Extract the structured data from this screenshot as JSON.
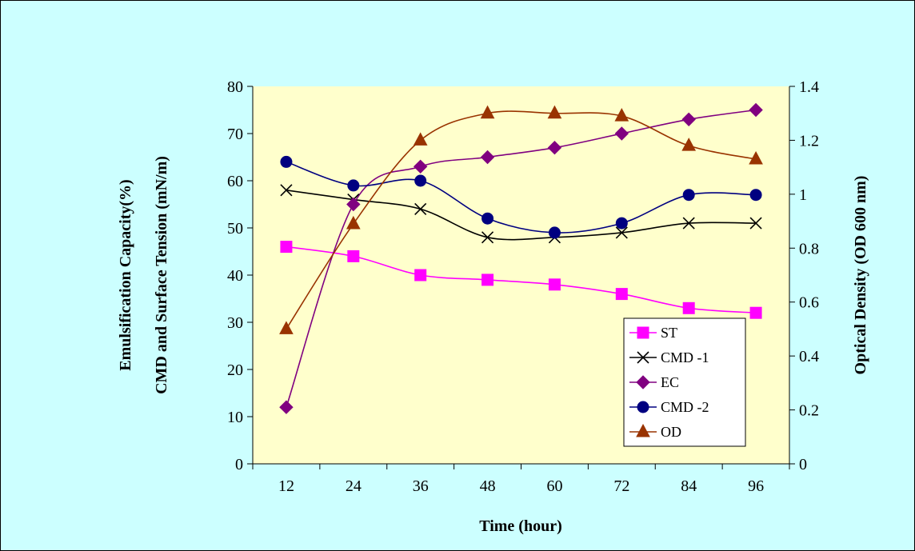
{
  "chart_data": {
    "type": "line",
    "title": "",
    "x": [
      12,
      24,
      36,
      48,
      60,
      72,
      84,
      96
    ],
    "xlabel": "Time (hour)",
    "ylabel_left_line1": "Emulsification Capacity(%)",
    "ylabel_left_line2": "CMD and Surface Tension (mN/m)",
    "ylabel_right": "Optical Density (OD 600 nm)",
    "ylim_left": [
      0,
      80
    ],
    "ylim_right": [
      0,
      1.4
    ],
    "yticks_left": [
      "0",
      "10",
      "20",
      "30",
      "40",
      "50",
      "60",
      "70",
      "80"
    ],
    "yticks_right": [
      "0",
      "0.2",
      "0.4",
      "0.6",
      "0.8",
      "1",
      "1.2",
      "1.4"
    ],
    "xticks": [
      "12",
      "24",
      "36",
      "48",
      "60",
      "72",
      "84",
      "96"
    ],
    "plot_background": "#ffffcc",
    "page_background": "#ccffff",
    "legend_position": "bottom-right",
    "series": [
      {
        "name": "ST",
        "axis": "left",
        "marker": "square",
        "color": "#ff00ff",
        "values": [
          46,
          44,
          40,
          39,
          38,
          36,
          33,
          32
        ]
      },
      {
        "name": "CMD -1",
        "axis": "left",
        "marker": "x",
        "color": "#000000",
        "values": [
          58,
          56,
          54,
          48,
          48,
          49,
          51,
          51
        ]
      },
      {
        "name": "EC",
        "axis": "left",
        "marker": "diamond",
        "color": "#800080",
        "values": [
          12,
          55,
          63,
          65,
          67,
          70,
          73,
          75
        ]
      },
      {
        "name": "CMD -2",
        "axis": "left",
        "marker": "circle",
        "color": "#000080",
        "values": [
          64,
          59,
          60,
          52,
          49,
          51,
          57,
          57
        ]
      },
      {
        "name": "OD",
        "axis": "right",
        "marker": "triangle",
        "color": "#993300",
        "values": [
          0.5,
          0.89,
          1.2,
          1.3,
          1.3,
          1.29,
          1.18,
          1.13
        ]
      }
    ]
  }
}
